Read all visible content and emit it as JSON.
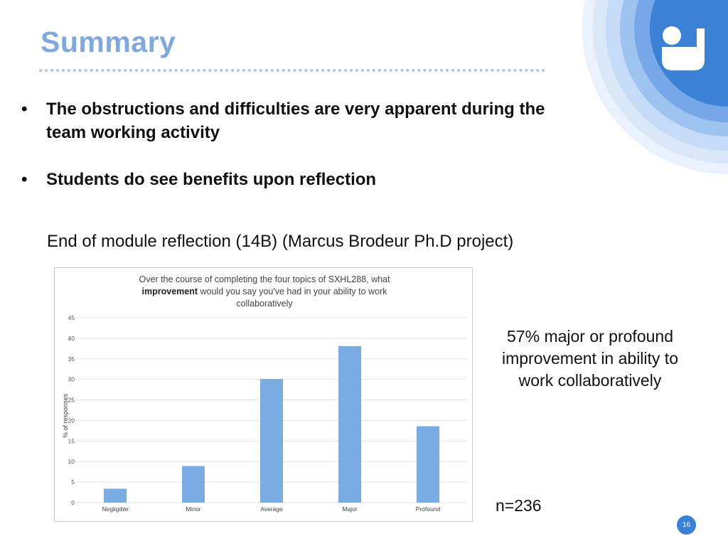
{
  "slide": {
    "title": "Summary",
    "bullets": [
      {
        "marker": "•",
        "lines": [
          "The obstructions and difficulties are very apparent during the",
          "team working activity"
        ]
      },
      {
        "marker": "•",
        "lines": [
          "Students do see benefits upon reflection"
        ]
      }
    ],
    "subheading": "End of module reflection (14B) (Marcus Brodeur Ph.D project)",
    "callout": "57% major or profound improvement in ability to work collaboratively",
    "sample_size": "n=236",
    "page_number": "16",
    "logo_icon": "open-university-logo-icon",
    "colors": {
      "title": "#7fa9dd",
      "bar": "#7aace3",
      "badge": "#3b82d6",
      "arc": "#c6dbf7"
    }
  },
  "chart_data": {
    "type": "bar",
    "title_parts": [
      "Over the course of completing the four topics of SXHL288, what",
      {
        "bold": "improvement"
      },
      " would you say you've had in your ability to work collaboratively"
    ],
    "categories": [
      "Negligible",
      "Minor",
      "Average",
      "Major",
      "Profound"
    ],
    "values": [
      3.4,
      8.9,
      30.1,
      38.1,
      18.6
    ],
    "ylabel": "% of responses",
    "ylim": [
      0,
      45
    ],
    "yticks": [
      0,
      5,
      10,
      15,
      20,
      25,
      30,
      35,
      40,
      45
    ],
    "grid": true
  }
}
